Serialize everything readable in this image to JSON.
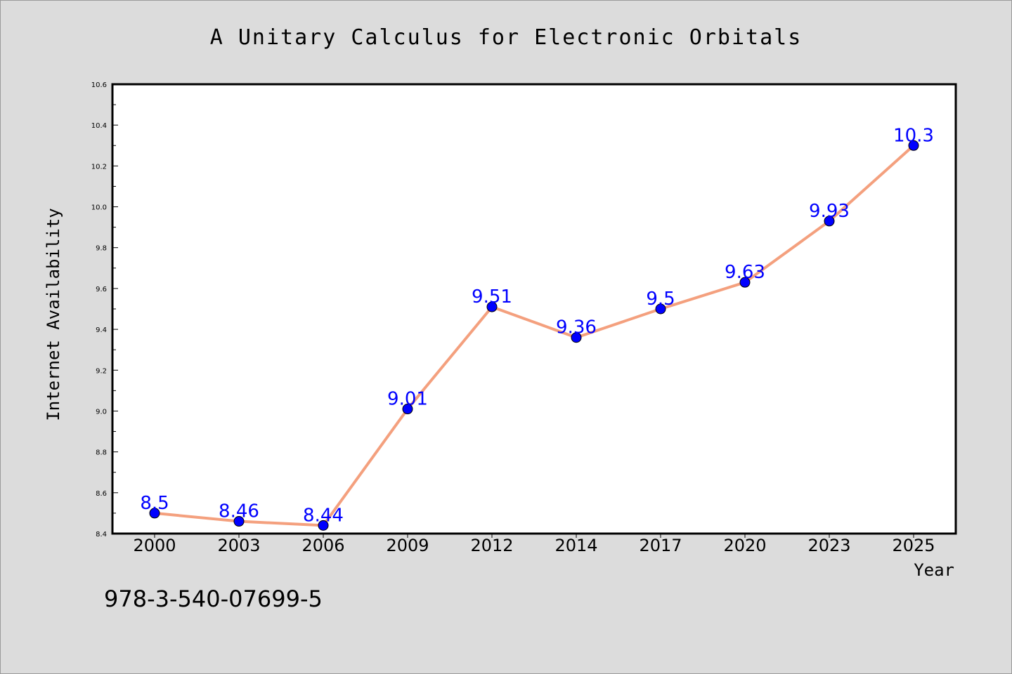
{
  "chart_data": {
    "type": "line",
    "title": "A Unitary Calculus for Electronic Orbitals",
    "xlabel": "Year",
    "ylabel": "Internet Availability",
    "categories": [
      "2000",
      "2003",
      "2006",
      "2009",
      "2012",
      "2014",
      "2017",
      "2020",
      "2023",
      "2025"
    ],
    "series": [
      {
        "values": [
          8.5,
          8.46,
          8.44,
          9.01,
          9.51,
          9.36,
          9.5,
          9.63,
          9.93,
          10.3
        ],
        "labels": [
          "8.5",
          "8.46",
          "8.44",
          "9.01",
          "9.51",
          "9.36",
          "9.5",
          "9.63",
          "9.93",
          "10.3"
        ]
      }
    ],
    "ylim": [
      8.4,
      10.6
    ],
    "yticks": [
      "8.4",
      "8.6",
      "8.8",
      "9.0",
      "9.2",
      "9.4",
      "9.6",
      "9.8",
      "10.0",
      "10.2",
      "10.4",
      "10.6"
    ],
    "grid": false,
    "legend": "none",
    "colors": {
      "line": "#f4a07e",
      "marker": "#0000ff",
      "data_label": "#0000ff",
      "plot_background": "#ffffff",
      "figure_background": "#dcdcdc"
    }
  },
  "annotation": {
    "isbn": "978-3-540-07699-5"
  }
}
